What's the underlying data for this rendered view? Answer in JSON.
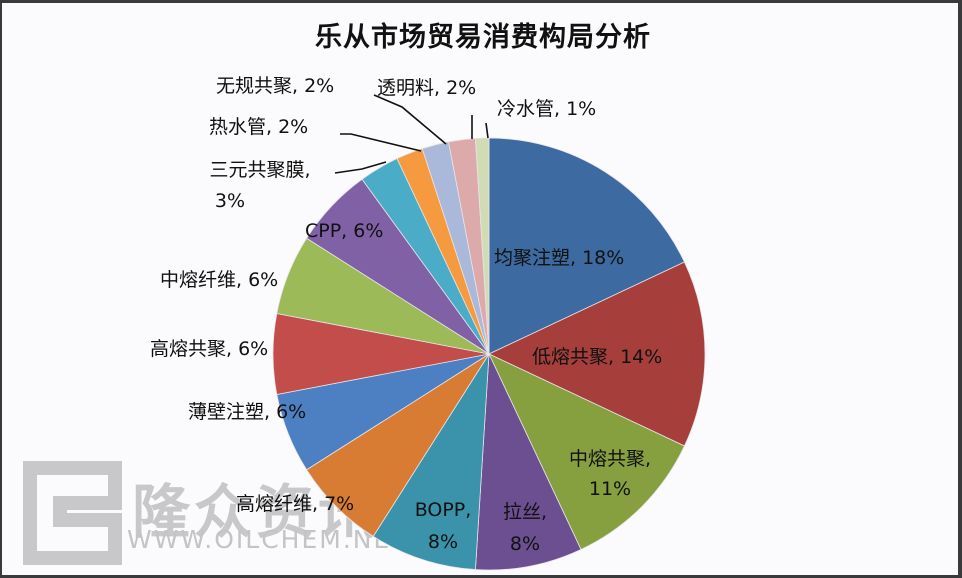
{
  "chart_data": {
    "type": "pie",
    "title": "乐从市场贸易消费构局分析",
    "start_angle": "12 o'clock, clockwise",
    "categories": [
      "均聚注塑",
      "低熔共聚",
      "中熔共聚",
      "拉丝",
      "BOPP",
      "高熔纤维",
      "薄壁注塑",
      "高熔共聚",
      "中熔纤维",
      "CPP",
      "三元共聚膜",
      "热水管",
      "无规共聚",
      "透明料",
      "冷水管"
    ],
    "values": [
      18,
      14,
      11,
      8,
      8,
      7,
      6,
      6,
      6,
      6,
      3,
      2,
      2,
      2,
      1
    ],
    "unit": "%",
    "colors": [
      "#3d6aa0",
      "#a63f3c",
      "#86a040",
      "#6b4f90",
      "#3a93ab",
      "#d97c33",
      "#4d80c2",
      "#c24d4a",
      "#9cba58",
      "#8061a6",
      "#4aacc6",
      "#f59a3e",
      "#aab8da",
      "#dcaaaa",
      "#d2dcb4"
    ],
    "labels": [
      {
        "text": "均聚注塑, 18%"
      },
      {
        "text": "低熔共聚, 14%"
      },
      {
        "line1": "中熔共聚,",
        "line2": "11%"
      },
      {
        "line1": "拉丝,",
        "line2": "8%"
      },
      {
        "line1": "BOPP,",
        "line2": "8%"
      },
      {
        "text": "高熔纤维, 7%"
      },
      {
        "text": "薄壁注塑, 6%"
      },
      {
        "text": "高熔共聚, 6%"
      },
      {
        "text": "中熔纤维, 6%"
      },
      {
        "text": "CPP, 6%"
      },
      {
        "line1": "三元共聚膜,",
        "line2": "3%"
      },
      {
        "text": "热水管, 2%"
      },
      {
        "text": "无规共聚, 2%"
      },
      {
        "text": "透明料, 2%"
      },
      {
        "text": "冷水管, 1%"
      }
    ],
    "legend": "none (data labels on slices)"
  },
  "watermark": {
    "cn": "隆众资讯",
    "url": "WWW.OILCHEM.NET"
  }
}
